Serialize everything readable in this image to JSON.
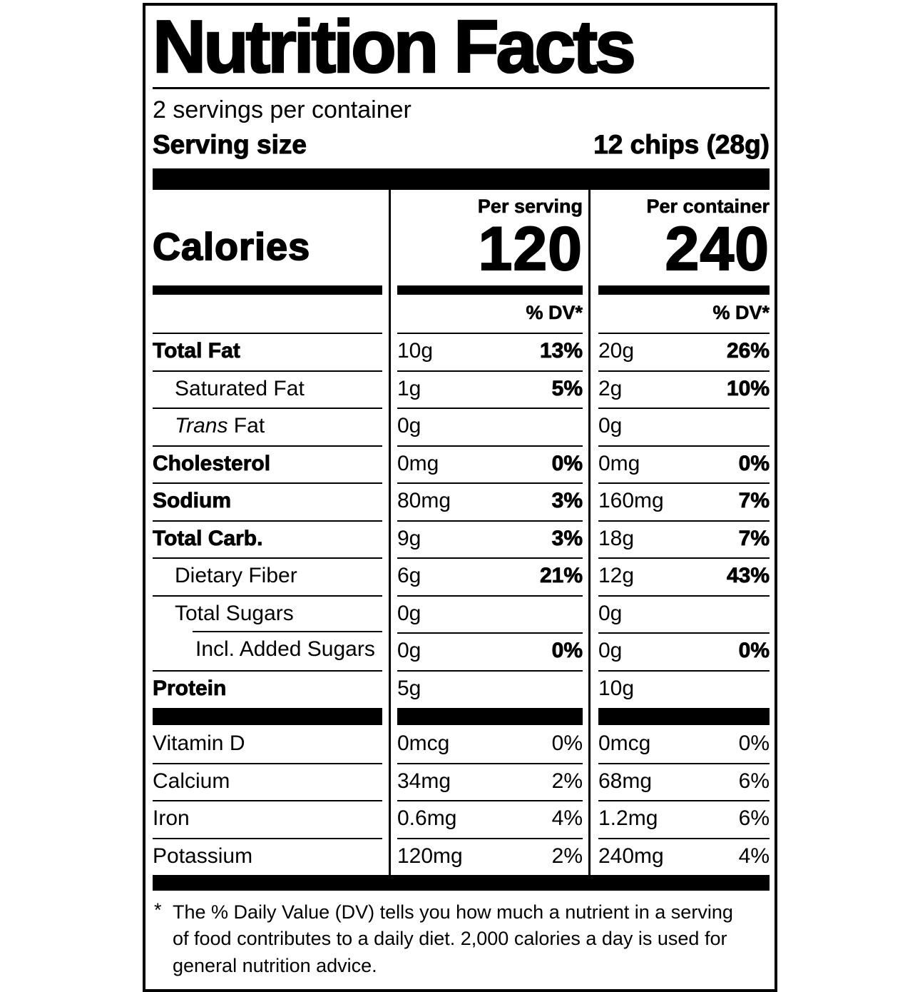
{
  "colors": {
    "ink": "#000000",
    "paper": "#ffffff"
  },
  "label": {
    "title": "Nutrition Facts",
    "servings_per_container": "2 servings per container",
    "serving_size_label": "Serving size",
    "serving_size_value": "12 chips (28g)",
    "calories": {
      "word": "Calories",
      "per_serving_header": "Per serving",
      "per_container_header": "Per container",
      "per_serving_value": "120",
      "per_container_value": "240"
    },
    "dv_header": "% DV*",
    "nutrients": [
      {
        "name": "Total Fat",
        "bold": true,
        "indent": 0,
        "rule_indent": false,
        "ps_amount": "10g",
        "ps_dv": "13%",
        "pc_amount": "20g",
        "pc_dv": "26%"
      },
      {
        "name": "Saturated Fat",
        "bold": false,
        "indent": 1,
        "rule_indent": false,
        "ps_amount": "1g",
        "ps_dv": "5%",
        "pc_amount": "2g",
        "pc_dv": "10%"
      },
      {
        "name_italic": "Trans",
        "name": " Fat",
        "bold": false,
        "indent": 1,
        "rule_indent": false,
        "ps_amount": "0g",
        "ps_dv": "",
        "pc_amount": "0g",
        "pc_dv": ""
      },
      {
        "name": "Cholesterol",
        "bold": true,
        "indent": 0,
        "rule_indent": false,
        "ps_amount": "0mg",
        "ps_dv": "0%",
        "pc_amount": "0mg",
        "pc_dv": "0%"
      },
      {
        "name": "Sodium",
        "bold": true,
        "indent": 0,
        "rule_indent": false,
        "ps_amount": "80mg",
        "ps_dv": "3%",
        "pc_amount": "160mg",
        "pc_dv": "7%"
      },
      {
        "name": "Total Carb.",
        "bold": true,
        "indent": 0,
        "rule_indent": false,
        "ps_amount": "9g",
        "ps_dv": "3%",
        "pc_amount": "18g",
        "pc_dv": "7%"
      },
      {
        "name": "Dietary Fiber",
        "bold": false,
        "indent": 1,
        "rule_indent": false,
        "ps_amount": "6g",
        "ps_dv": "21%",
        "pc_amount": "12g",
        "pc_dv": "43%"
      },
      {
        "name": "Total Sugars",
        "bold": false,
        "indent": 1,
        "rule_indent": false,
        "ps_amount": "0g",
        "ps_dv": "",
        "pc_amount": "0g",
        "pc_dv": ""
      },
      {
        "name": "Incl. Added Sugars",
        "bold": false,
        "indent": 2,
        "rule_indent": true,
        "ps_amount": "0g",
        "ps_dv": "0%",
        "pc_amount": "0g",
        "pc_dv": "0%"
      },
      {
        "name": "Protein",
        "bold": true,
        "indent": 0,
        "rule_indent": false,
        "ps_amount": "5g",
        "ps_dv": "",
        "pc_amount": "10g",
        "pc_dv": ""
      }
    ],
    "vitamins": [
      {
        "name": "Vitamin D",
        "ps_amount": "0mcg",
        "ps_dv": "0%",
        "pc_amount": "0mcg",
        "pc_dv": "0%"
      },
      {
        "name": "Calcium",
        "ps_amount": "34mg",
        "ps_dv": "2%",
        "pc_amount": "68mg",
        "pc_dv": "6%"
      },
      {
        "name": "Iron",
        "ps_amount": "0.6mg",
        "ps_dv": "4%",
        "pc_amount": "1.2mg",
        "pc_dv": "6%"
      },
      {
        "name": "Potassium",
        "ps_amount": "120mg",
        "ps_dv": "2%",
        "pc_amount": "240mg",
        "pc_dv": "4%"
      }
    ],
    "footnote_marker": "*",
    "footnote": "The % Daily Value (DV) tells you how much a nutrient in a serving of food contributes to a daily diet. 2,000 calories a day is used for general nutrition advice."
  }
}
